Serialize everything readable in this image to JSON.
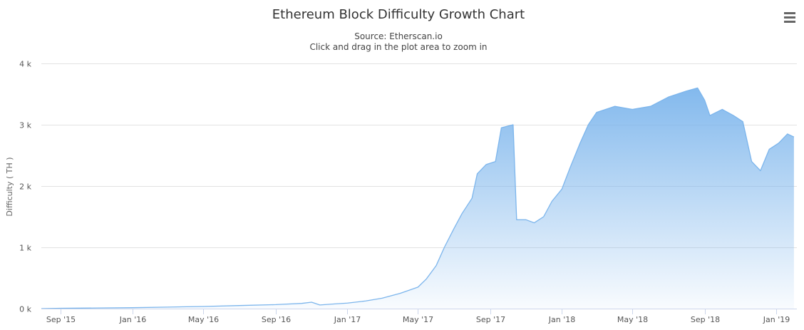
{
  "chart_data": {
    "type": "area",
    "title": "Ethereum Block Difficulty Growth Chart",
    "subtitle": "Source: Etherscan.io",
    "zoom_hint": "Click and drag in the plot area to zoom in",
    "ylabel": "Difficulty ( TH )",
    "xlabel": "",
    "ylim": [
      0,
      4000
    ],
    "y_ticks": [
      {
        "value": 0,
        "label": "0 k"
      },
      {
        "value": 1000,
        "label": "1 k"
      },
      {
        "value": 2000,
        "label": "2 k"
      },
      {
        "value": 3000,
        "label": "3 k"
      },
      {
        "value": 4000,
        "label": "4 k"
      }
    ],
    "x_range": [
      "2015-07-30",
      "2019-02-05"
    ],
    "x_ticks": [
      {
        "date": "2015-09-01",
        "label": "Sep '15"
      },
      {
        "date": "2016-01-01",
        "label": "Jan '16"
      },
      {
        "date": "2016-05-01",
        "label": "May '16"
      },
      {
        "date": "2016-09-01",
        "label": "Sep '16"
      },
      {
        "date": "2017-01-01",
        "label": "Jan '17"
      },
      {
        "date": "2017-05-01",
        "label": "May '17"
      },
      {
        "date": "2017-09-01",
        "label": "Sep '17"
      },
      {
        "date": "2018-01-01",
        "label": "Jan '18"
      },
      {
        "date": "2018-05-01",
        "label": "May '18"
      },
      {
        "date": "2018-09-01",
        "label": "Sep '18"
      },
      {
        "date": "2019-01-01",
        "label": "Jan '19"
      }
    ],
    "series": [
      {
        "color": "#7cb5ec",
        "points": [
          [
            "2015-07-30",
            0
          ],
          [
            "2015-09-01",
            5
          ],
          [
            "2015-11-01",
            10
          ],
          [
            "2016-01-01",
            15
          ],
          [
            "2016-03-01",
            25
          ],
          [
            "2016-05-01",
            35
          ],
          [
            "2016-07-01",
            50
          ],
          [
            "2016-09-01",
            65
          ],
          [
            "2016-10-15",
            85
          ],
          [
            "2016-11-01",
            105
          ],
          [
            "2016-11-15",
            60
          ],
          [
            "2016-12-15",
            80
          ],
          [
            "2017-01-01",
            90
          ],
          [
            "2017-02-01",
            125
          ],
          [
            "2017-03-01",
            170
          ],
          [
            "2017-04-01",
            250
          ],
          [
            "2017-05-01",
            350
          ],
          [
            "2017-05-15",
            480
          ],
          [
            "2017-06-01",
            700
          ],
          [
            "2017-06-15",
            1000
          ],
          [
            "2017-07-01",
            1300
          ],
          [
            "2017-07-15",
            1550
          ],
          [
            "2017-08-01",
            1800
          ],
          [
            "2017-08-10",
            2200
          ],
          [
            "2017-08-25",
            2350
          ],
          [
            "2017-09-10",
            2400
          ],
          [
            "2017-09-20",
            2950
          ],
          [
            "2017-10-10",
            3000
          ],
          [
            "2017-10-16",
            1450
          ],
          [
            "2017-11-01",
            1450
          ],
          [
            "2017-11-15",
            1400
          ],
          [
            "2017-12-01",
            1500
          ],
          [
            "2017-12-15",
            1750
          ],
          [
            "2018-01-01",
            1950
          ],
          [
            "2018-01-15",
            2300
          ],
          [
            "2018-02-01",
            2700
          ],
          [
            "2018-02-15",
            3000
          ],
          [
            "2018-03-01",
            3200
          ],
          [
            "2018-04-01",
            3300
          ],
          [
            "2018-05-01",
            3250
          ],
          [
            "2018-06-01",
            3300
          ],
          [
            "2018-07-01",
            3450
          ],
          [
            "2018-08-01",
            3550
          ],
          [
            "2018-08-20",
            3600
          ],
          [
            "2018-09-01",
            3400
          ],
          [
            "2018-09-10",
            3150
          ],
          [
            "2018-10-01",
            3250
          ],
          [
            "2018-10-20",
            3150
          ],
          [
            "2018-11-05",
            3050
          ],
          [
            "2018-11-20",
            2400
          ],
          [
            "2018-12-05",
            2250
          ],
          [
            "2018-12-20",
            2600
          ],
          [
            "2019-01-05",
            2700
          ],
          [
            "2019-01-20",
            2850
          ],
          [
            "2019-01-31",
            2800
          ]
        ]
      }
    ]
  },
  "menu": {
    "icon": "hamburger-menu-icon"
  }
}
